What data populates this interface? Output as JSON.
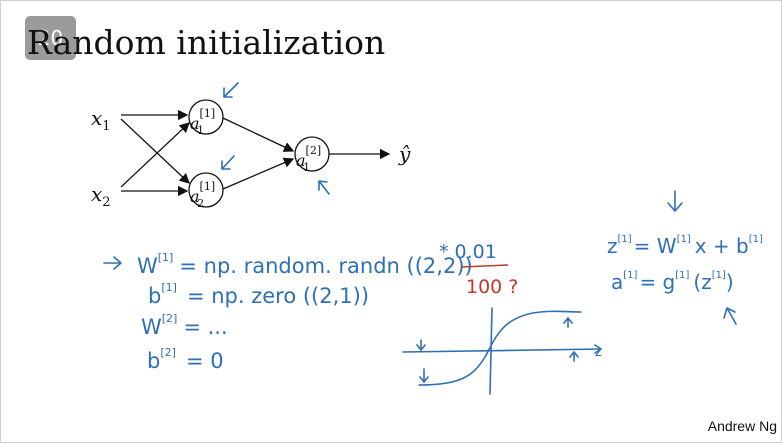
{
  "slide": {
    "number": "20",
    "title": "Random initialization",
    "footer": "Andrew Ng"
  },
  "network": {
    "inputs": [
      "x",
      "x"
    ],
    "input_subs": [
      "1",
      "2"
    ],
    "hidden_nodes": [
      {
        "base": "a",
        "sup": "[1]",
        "sub": "1"
      },
      {
        "base": "a",
        "sup": "[1]",
        "sub": "2"
      }
    ],
    "output_node": {
      "base": "a",
      "sup": "[2]",
      "sub": "1"
    },
    "output_label": "ŷ"
  },
  "notes": {
    "line1": "W",
    "line1_sup": "[1]",
    "line1_rest": "= np. random. randn ((2,2))",
    "line1_mult": "* 0.01",
    "line1_red": "100 ?",
    "line2": "b",
    "line2_sup": "[1]",
    "line2_rest": "= np. zero ((2,1))",
    "line3": "W",
    "line3_sup": "[2]",
    "line3_rest": "= ...",
    "line4": "b",
    "line4_sup": "[2]",
    "line4_rest": "= 0",
    "eq1_lhs": "z",
    "eq1_lhs_sup": "[1]",
    "eq1_rest": "= W",
    "eq1_w_sup": "[1]",
    "eq1_tail": "x + b",
    "eq1_b_sup": "[1]",
    "eq2_lhs": "a",
    "eq2_lhs_sup": "[1]",
    "eq2_rest": "= g",
    "eq2_g_sup": "[1]",
    "eq2_tail": "(z",
    "eq2_z_sup": "[1]",
    "eq2_close": ")",
    "axis_label": "z"
  },
  "colors": {
    "ink": "#111111",
    "pen_blue": "#2f6fb5",
    "pen_red": "#c0392b"
  }
}
